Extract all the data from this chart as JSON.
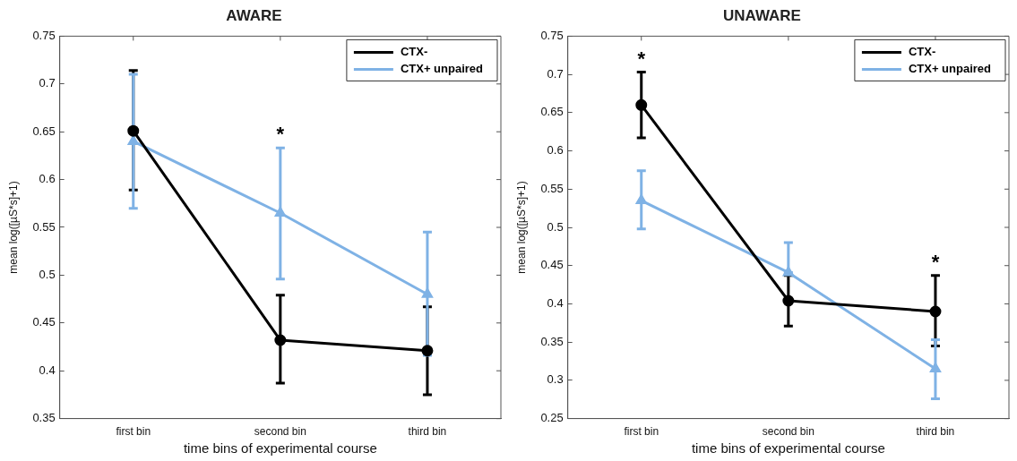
{
  "chart_data": [
    {
      "type": "line",
      "title": "AWARE",
      "xlabel": "time bins of experimental course",
      "ylabel": "mean log([µS*s]+1)",
      "categories": [
        "first bin",
        "second bin",
        "third bin"
      ],
      "series": [
        {
          "name": "CTX-",
          "color": "#000000",
          "marker": "circle",
          "values": [
            0.651,
            0.432,
            0.421
          ],
          "errors": [
            [
              0.589,
              0.714
            ],
            [
              0.387,
              0.479
            ],
            [
              0.375,
              0.467
            ]
          ]
        },
        {
          "name": "CTX+ unpaired",
          "color": "#7fb2e5",
          "marker": "triangle",
          "values": [
            0.64,
            0.565,
            0.48
          ],
          "errors": [
            [
              0.57,
              0.71
            ],
            [
              0.496,
              0.633
            ],
            [
              0.416,
              0.545
            ]
          ]
        }
      ],
      "ylim": [
        0.35,
        0.75
      ],
      "yticks": [
        0.35,
        0.4,
        0.45,
        0.5,
        0.55,
        0.6,
        0.65,
        0.7,
        0.75
      ],
      "grid": false,
      "legend": "top right",
      "annotations": [
        "*"
      ]
    },
    {
      "type": "line",
      "title": "UNAWARE",
      "xlabel": "time bins of experimental course",
      "ylabel": "mean log([µS*s]+1)",
      "categories": [
        "first bin",
        "second bin",
        "third bin"
      ],
      "series": [
        {
          "name": "CTX-",
          "color": "#000000",
          "marker": "circle",
          "values": [
            0.66,
            0.404,
            0.39
          ],
          "errors": [
            [
              0.617,
              0.703
            ],
            [
              0.371,
              0.437
            ],
            [
              0.345,
              0.437
            ]
          ]
        },
        {
          "name": "CTX+ unpaired",
          "color": "#7fb2e5",
          "marker": "triangle",
          "values": [
            0.535,
            0.441,
            0.315
          ],
          "errors": [
            [
              0.498,
              0.574
            ],
            [
              0.441,
              0.48
            ],
            [
              0.276,
              0.353
            ]
          ]
        }
      ],
      "ylim": [
        0.25,
        0.75
      ],
      "yticks": [
        0.25,
        0.3,
        0.35,
        0.4,
        0.45,
        0.5,
        0.55,
        0.6,
        0.65,
        0.7,
        0.75
      ],
      "grid": false,
      "legend": "top right",
      "annotations": [
        "*",
        "*"
      ]
    }
  ]
}
